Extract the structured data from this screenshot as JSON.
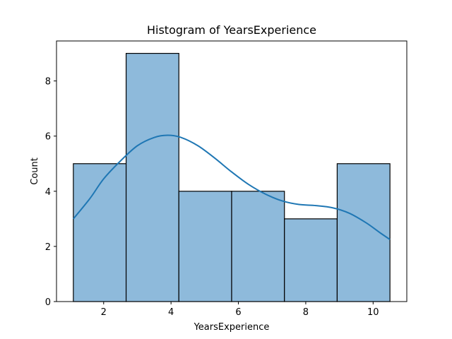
{
  "chart_data": {
    "type": "bar",
    "title": "Histogram of YearsExperience",
    "xlabel": "YearsExperience",
    "ylabel": "Count",
    "xlim": [
      0.6,
      11.0
    ],
    "ylim": [
      0,
      9.45
    ],
    "xticks": [
      2,
      4,
      6,
      8,
      10
    ],
    "yticks": [
      0,
      2,
      4,
      6,
      8
    ],
    "bins": [
      {
        "left": 1.1,
        "right": 2.667,
        "count": 5
      },
      {
        "left": 2.667,
        "right": 4.233,
        "count": 9
      },
      {
        "left": 4.233,
        "right": 5.8,
        "count": 4
      },
      {
        "left": 5.8,
        "right": 7.367,
        "count": 4
      },
      {
        "left": 7.367,
        "right": 8.933,
        "count": 3
      },
      {
        "left": 8.933,
        "right": 10.5,
        "count": 5
      }
    ],
    "kde": {
      "x": [
        1.1,
        1.6,
        2.0,
        2.5,
        3.0,
        3.5,
        3.9,
        4.3,
        4.8,
        5.3,
        5.8,
        6.3,
        6.8,
        7.3,
        7.8,
        8.3,
        8.8,
        9.3,
        9.8,
        10.2,
        10.5
      ],
      "y": [
        3.0,
        3.75,
        4.45,
        5.1,
        5.65,
        5.95,
        6.03,
        5.95,
        5.65,
        5.2,
        4.7,
        4.25,
        3.9,
        3.65,
        3.52,
        3.48,
        3.4,
        3.2,
        2.85,
        2.5,
        2.25
      ]
    },
    "grid": false,
    "colors": {
      "bar_fill": "#8ebadb",
      "line": "#1f77b4"
    }
  }
}
